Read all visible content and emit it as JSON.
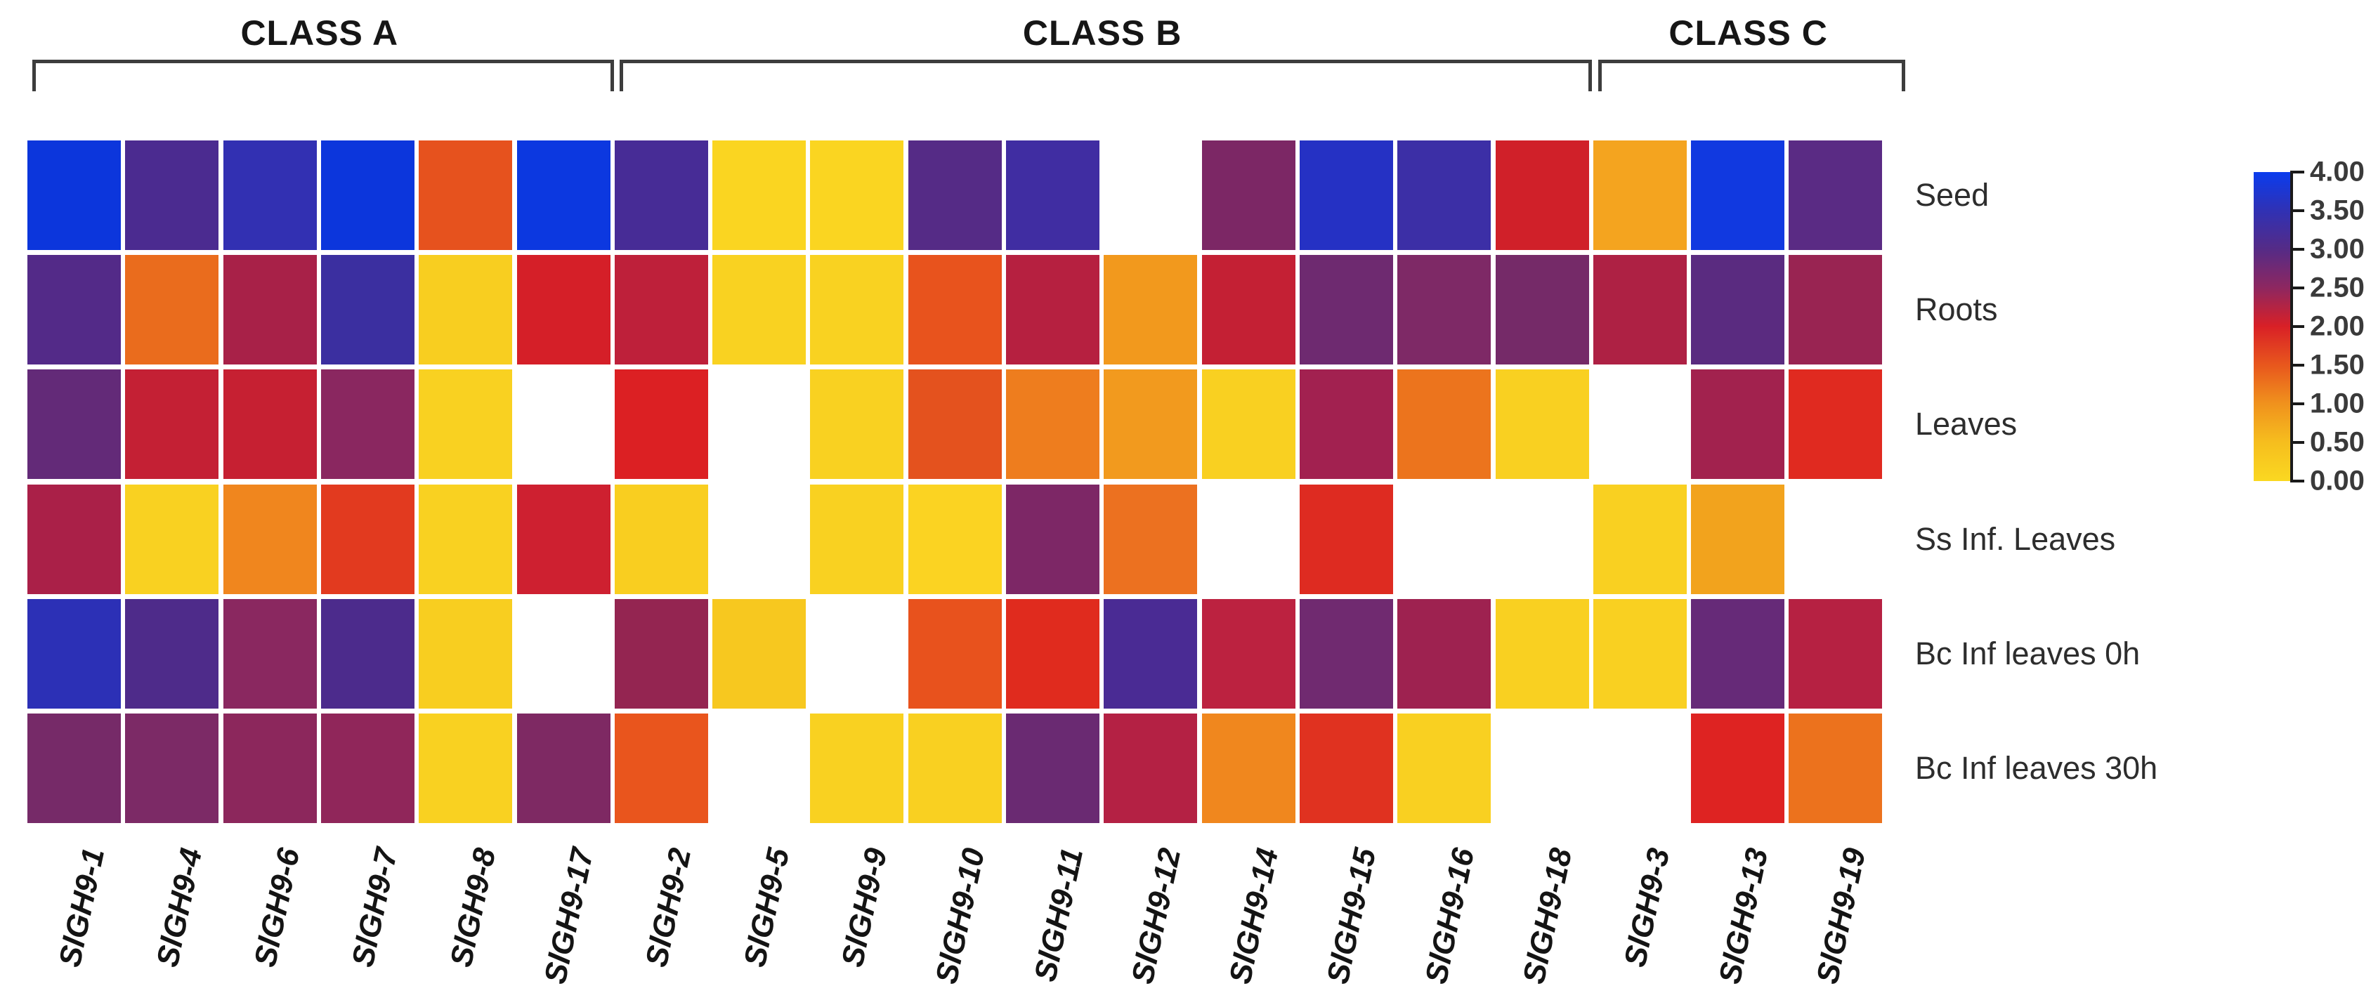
{
  "figure": {
    "class_groups": [
      {
        "label": "CLASS A",
        "col_start": 0,
        "col_end": 5
      },
      {
        "label": "CLASS B",
        "col_start": 6,
        "col_end": 15
      },
      {
        "label": "CLASS C",
        "col_start": 16,
        "col_end": 18
      }
    ]
  },
  "chart_data": {
    "type": "heatmap",
    "x_categories": [
      "SlGH9-1",
      "SlGH9-4",
      "SlGH9-6",
      "SlGH9-7",
      "SlGH9-8",
      "SlGH9-17",
      "SlGH9-2",
      "SlGH9-5",
      "SlGH9-9",
      "SlGH9-10",
      "SlGH9-11",
      "SlGH9-12",
      "SlGH9-14",
      "SlGH9-15",
      "SlGH9-16",
      "SlGH9-18",
      "SlGH9-3",
      "SlGH9-13",
      "SlGH9-19"
    ],
    "y_categories": [
      "Seed",
      "Roots",
      "Leaves",
      "Ss Inf. Leaves",
      "Bc Inf leaves 0h",
      "Bc Inf leaves 30h"
    ],
    "column_classes": {
      "CLASS A": [
        "SlGH9-1",
        "SlGH9-4",
        "SlGH9-6",
        "SlGH9-7",
        "SlGH9-8",
        "SlGH9-17"
      ],
      "CLASS B": [
        "SlGH9-2",
        "SlGH9-5",
        "SlGH9-9",
        "SlGH9-10",
        "SlGH9-11",
        "SlGH9-12",
        "SlGH9-14",
        "SlGH9-15",
        "SlGH9-16",
        "SlGH9-18"
      ],
      "CLASS C": [
        "SlGH9-3",
        "SlGH9-13",
        "SlGH9-19"
      ]
    },
    "values": [
      [
        3.95,
        3.1,
        3.5,
        3.95,
        1.55,
        3.95,
        3.25,
        0.1,
        0.1,
        3.0,
        3.4,
        null,
        2.6,
        3.7,
        3.45,
        2.0,
        0.9,
        3.9,
        3.05
      ],
      [
        3.05,
        1.35,
        2.25,
        3.4,
        0.15,
        2.0,
        2.1,
        0.1,
        0.1,
        1.55,
        2.15,
        0.95,
        2.1,
        2.75,
        2.6,
        2.65,
        2.2,
        2.95,
        2.35
      ],
      [
        2.85,
        2.1,
        2.05,
        2.5,
        0.15,
        null,
        1.95,
        null,
        0.1,
        1.6,
        1.25,
        0.95,
        0.2,
        2.3,
        1.3,
        0.2,
        null,
        2.3,
        1.9
      ],
      [
        2.25,
        0.15,
        1.15,
        1.8,
        0.1,
        2.05,
        0.2,
        null,
        0.15,
        0.15,
        2.6,
        1.35,
        null,
        1.9,
        null,
        null,
        0.2,
        0.9,
        null
      ],
      [
        3.65,
        3.1,
        2.5,
        3.1,
        0.15,
        null,
        2.4,
        0.3,
        null,
        1.6,
        1.85,
        3.2,
        2.15,
        2.7,
        2.35,
        0.2,
        0.2,
        2.8,
        2.2
      ],
      [
        2.65,
        2.6,
        2.5,
        2.45,
        0.15,
        2.6,
        1.5,
        null,
        0.1,
        0.15,
        2.75,
        2.2,
        1.15,
        1.85,
        0.2,
        null,
        null,
        1.9,
        1.35
      ]
    ],
    "cell_colors": [
      [
        "#0C36DC",
        "#4B2B90",
        "#3230B2",
        "#0C36DC",
        "#E6521E",
        "#0C38E0",
        "#472C96",
        "#FAD521",
        "#FAD521",
        "#552B86",
        "#402DA2",
        null,
        "#7C2765",
        "#2531C4",
        "#3C2FA6",
        "#D02029",
        "#F4A41F",
        "#1139E0",
        "#5A2B84"
      ],
      [
        "#532A88",
        "#EA6C1D",
        "#A82148",
        "#3B2FA0",
        "#F8CE20",
        "#D51F28",
        "#BE203A",
        "#F9D221",
        "#F9D221",
        "#E8531D",
        "#B62040",
        "#F2991D",
        "#C42034",
        "#6E2A70",
        "#7E2966",
        "#752A68",
        "#AE2144",
        "#5A2B80",
        "#992452"
      ],
      [
        "#632A78",
        "#C42034",
        "#C62032",
        "#8A2760",
        "#F9D121",
        null,
        "#DC2023",
        null,
        "#F9D121",
        "#E4521E",
        "#EE7D1E",
        "#F29A1E",
        "#F9D021",
        "#A22150",
        "#EC741D",
        "#F9D021",
        null,
        "#A2224E",
        "#E02A20"
      ],
      [
        "#AA2048",
        "#F9D121",
        "#F0861E",
        "#E23A1F",
        "#F9D121",
        "#CE2030",
        "#F9CE20",
        null,
        "#F9D121",
        "#FBD322",
        "#7D2766",
        "#EC7120",
        null,
        "#DE2B21",
        null,
        null,
        "#F9D021",
        "#F2A31D",
        null
      ],
      [
        "#2C30B6",
        "#4E2B8A",
        "#8A2860",
        "#4C2B8C",
        "#F8CE20",
        null,
        "#942551",
        "#F7C81F",
        null,
        "#E8521D",
        "#E02B1E",
        "#4A2B94",
        "#BC2240",
        "#702A70",
        "#9E2250",
        "#F9D021",
        "#F9D021",
        "#662A78",
        "#B62142"
      ],
      [
        "#762A68",
        "#7C2A66",
        "#8C275C",
        "#90265A",
        "#F9D121",
        "#7E2963",
        "#E9551D",
        null,
        "#F9D121",
        "#F9D021",
        "#6A2A72",
        "#B42144",
        "#F0871E",
        "#E03220",
        "#F9D021",
        null,
        null,
        "#DE2322",
        "#EC721D"
      ]
    ],
    "missing_cell_color": "#FFFFFF",
    "colorbar": {
      "min": 0,
      "max": 4,
      "tick_labels": [
        "4.00",
        "3.50",
        "3.00",
        "2.50",
        "2.00",
        "1.50",
        "1.00",
        "0.50",
        "0.00"
      ],
      "gradient_stops_top_to_bottom": [
        "#0A3CEE",
        "#3031B4",
        "#552B86",
        "#8E2760",
        "#D92026",
        "#E8571D",
        "#F0921D",
        "#F6BE1E",
        "#FAD821"
      ]
    },
    "legend_position": "right",
    "grid": false
  }
}
